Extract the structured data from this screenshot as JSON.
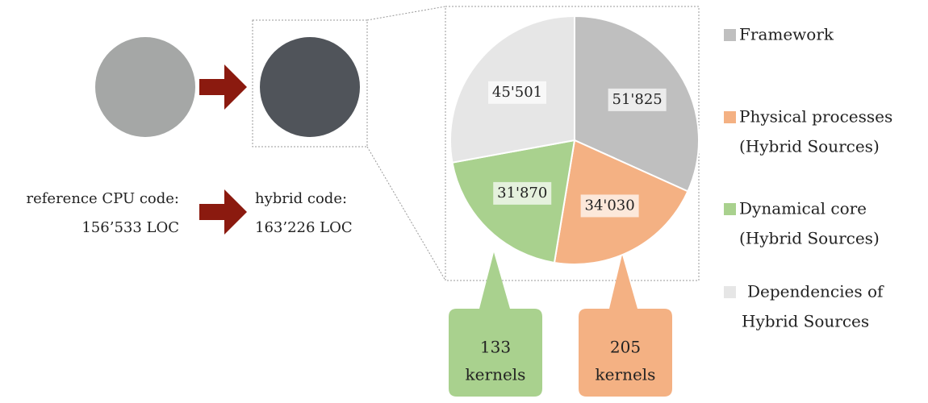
{
  "chart_data": {
    "type": "pie",
    "values": [
      51825,
      34030,
      31870,
      45501
    ],
    "value_labels": [
      "51'825",
      "34'030",
      "31'870",
      "45'501"
    ],
    "colors": [
      "#bfbfbf",
      "#f4b183",
      "#a9d18e",
      "#e6e6e6"
    ],
    "legend": [
      [
        "Framework"
      ],
      [
        "Physical processes",
        "(Hybrid Sources)"
      ],
      [
        "Dynamical core",
        "(Hybrid Sources)"
      ],
      [
        "Dependencies of",
        "Hybrid Sources"
      ]
    ]
  },
  "diagram": {
    "reference": [
      "reference CPU code:",
      "156’533 LOC"
    ],
    "hybrid": [
      "hybrid code:",
      "163’226 LOC"
    ],
    "callouts": [
      [
        "133",
        "kernels"
      ],
      [
        "205",
        "kernels"
      ]
    ]
  }
}
